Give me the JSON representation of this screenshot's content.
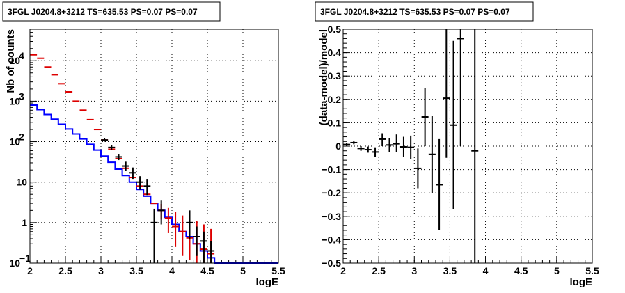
{
  "chart_data": [
    {
      "type": "line",
      "title": "3FGL J0204.8+3212 TS=635.53 PS=0.07 PS=0.07",
      "xlabel": "logE",
      "ylabel": "Nb of counts",
      "xlim": [
        2,
        5.5
      ],
      "ylim": [
        0.1,
        60000
      ],
      "yscale": "log",
      "grid": true,
      "xticks": [
        "2",
        "2.5",
        "3",
        "3.5",
        "4",
        "4.5",
        "5",
        "5.5"
      ],
      "yticks": [
        {
          "value": 0.1,
          "label": "10",
          "sup": "−1"
        },
        {
          "value": 1,
          "label": "1",
          "sup": ""
        },
        {
          "value": 10,
          "label": "10",
          "sup": ""
        },
        {
          "value": 100,
          "label": "10",
          "sup": "2"
        },
        {
          "value": 1000,
          "label": "10",
          "sup": "3"
        },
        {
          "value": 10000,
          "label": "10",
          "sup": "4"
        }
      ],
      "series": [
        {
          "color": "#0000ff",
          "style": "step",
          "bins": [
            2.0,
            2.1,
            2.2,
            2.3,
            2.4,
            2.5,
            2.6,
            2.7,
            2.8,
            2.9,
            3.0,
            3.1,
            3.2,
            3.3,
            3.4,
            3.5,
            3.6,
            3.7,
            3.8,
            3.9,
            4.0,
            4.1,
            4.2,
            4.3,
            4.4,
            4.5,
            4.6,
            4.7,
            4.8,
            4.9,
            5.0,
            5.1,
            5.2,
            5.3,
            5.4,
            5.5
          ],
          "values": [
            800,
            620,
            470,
            360,
            270,
            205,
            155,
            117,
            86,
            62,
            44,
            31,
            21,
            14.5,
            10,
            6.6,
            4.5,
            3.0,
            2.0,
            1.35,
            0.9,
            0.6,
            0.45,
            0.3,
            0.2,
            0.135,
            0.1,
            0.1,
            0.1,
            0.1,
            0.1,
            0.1,
            0.1,
            0.1,
            0.1
          ]
        },
        {
          "color": "#dd0000",
          "style": "points",
          "x": [
            2.05,
            2.15,
            2.25,
            2.35,
            2.45,
            2.55,
            2.65,
            2.75,
            2.85,
            2.95,
            3.05,
            3.15,
            3.25,
            3.35,
            3.45,
            3.55,
            3.65,
            3.75,
            3.85,
            3.95,
            4.05,
            4.15,
            4.25,
            4.35,
            4.45,
            4.55
          ],
          "y": [
            14000,
            11500,
            7000,
            4500,
            2700,
            1700,
            1000,
            600,
            350,
            200,
            110,
            65,
            38,
            22,
            13,
            8,
            5,
            3,
            2,
            1.3,
            0.8,
            0.6,
            0.42,
            0.3,
            0.22,
            0.17
          ],
          "ylow": [
            14000,
            11500,
            7000,
            4500,
            2700,
            1700,
            1000,
            600,
            350,
            200,
            110,
            65,
            38,
            22,
            13,
            8,
            5,
            3,
            1.2,
            0.55,
            0.25,
            0.15,
            0.12,
            0.1,
            0.1,
            0.1
          ],
          "yhigh": [
            14000,
            11500,
            7000,
            4500,
            2700,
            1700,
            1000,
            600,
            350,
            200,
            110,
            65,
            38,
            22,
            13,
            8,
            5,
            3,
            2.9,
            2.3,
            1.8,
            1.5,
            1.3,
            1.1,
            0.9,
            0.7
          ]
        },
        {
          "color": "#000000",
          "style": "points",
          "x": [
            3.05,
            3.15,
            3.25,
            3.35,
            3.45,
            3.55,
            3.65,
            3.75,
            3.85,
            4.25,
            4.35,
            4.45,
            4.55
          ],
          "y": [
            110,
            72,
            42,
            25,
            17,
            10,
            8,
            1,
            2,
            1,
            0.45,
            0.35,
            0.2
          ],
          "ylow": [
            100,
            63,
            35,
            19,
            12,
            6.5,
            4.8,
            0.1,
            0.9,
            0.4,
            0.15,
            0.1,
            0.1
          ],
          "yhigh": [
            120,
            82,
            50,
            32,
            23,
            14,
            12,
            2.2,
            3.5,
            2.0,
            0.8,
            0.6,
            0.35
          ]
        }
      ]
    },
    {
      "type": "scatter",
      "title": "3FGL J0204.8+3212 TS=635.53 PS=0.07 PS=0.07",
      "xlabel": "logE",
      "ylabel": "(data-model)/model",
      "xlim": [
        2,
        5.5
      ],
      "ylim": [
        -0.5,
        0.5
      ],
      "grid": true,
      "xticks": [
        "2",
        "2.5",
        "3",
        "3.5",
        "4",
        "4.5",
        "5",
        "5.5"
      ],
      "yticks": [
        "−0.5",
        "−0.4",
        "−0.3",
        "−0.2",
        "−0.1",
        "0",
        "0.1",
        "0.2",
        "0.3",
        "0.4",
        "0.5"
      ],
      "series": [
        {
          "color": "#000000",
          "x": [
            2.05,
            2.15,
            2.25,
            2.35,
            2.45,
            2.55,
            2.65,
            2.75,
            2.85,
            2.95,
            3.05,
            3.15,
            3.25,
            3.35,
            3.45,
            3.55,
            3.65,
            3.85
          ],
          "y": [
            0.007,
            0.015,
            -0.01,
            -0.015,
            -0.025,
            0.03,
            0.005,
            0.01,
            -0.003,
            -0.005,
            -0.095,
            0.125,
            -0.035,
            -0.165,
            0.205,
            0.09,
            0.46,
            -0.02
          ],
          "ylow": [
            0.0,
            0.008,
            -0.02,
            -0.028,
            -0.045,
            0.0,
            -0.025,
            -0.025,
            -0.045,
            -0.055,
            -0.18,
            0.0,
            -0.2,
            -0.36,
            -0.05,
            -0.27,
            0.0,
            -0.5
          ],
          "yhigh": [
            0.014,
            0.022,
            0.0,
            -0.002,
            -0.005,
            0.055,
            0.035,
            0.05,
            0.04,
            0.045,
            -0.01,
            0.25,
            0.13,
            0.03,
            0.5,
            0.45,
            0.5,
            0.5
          ]
        }
      ]
    }
  ]
}
